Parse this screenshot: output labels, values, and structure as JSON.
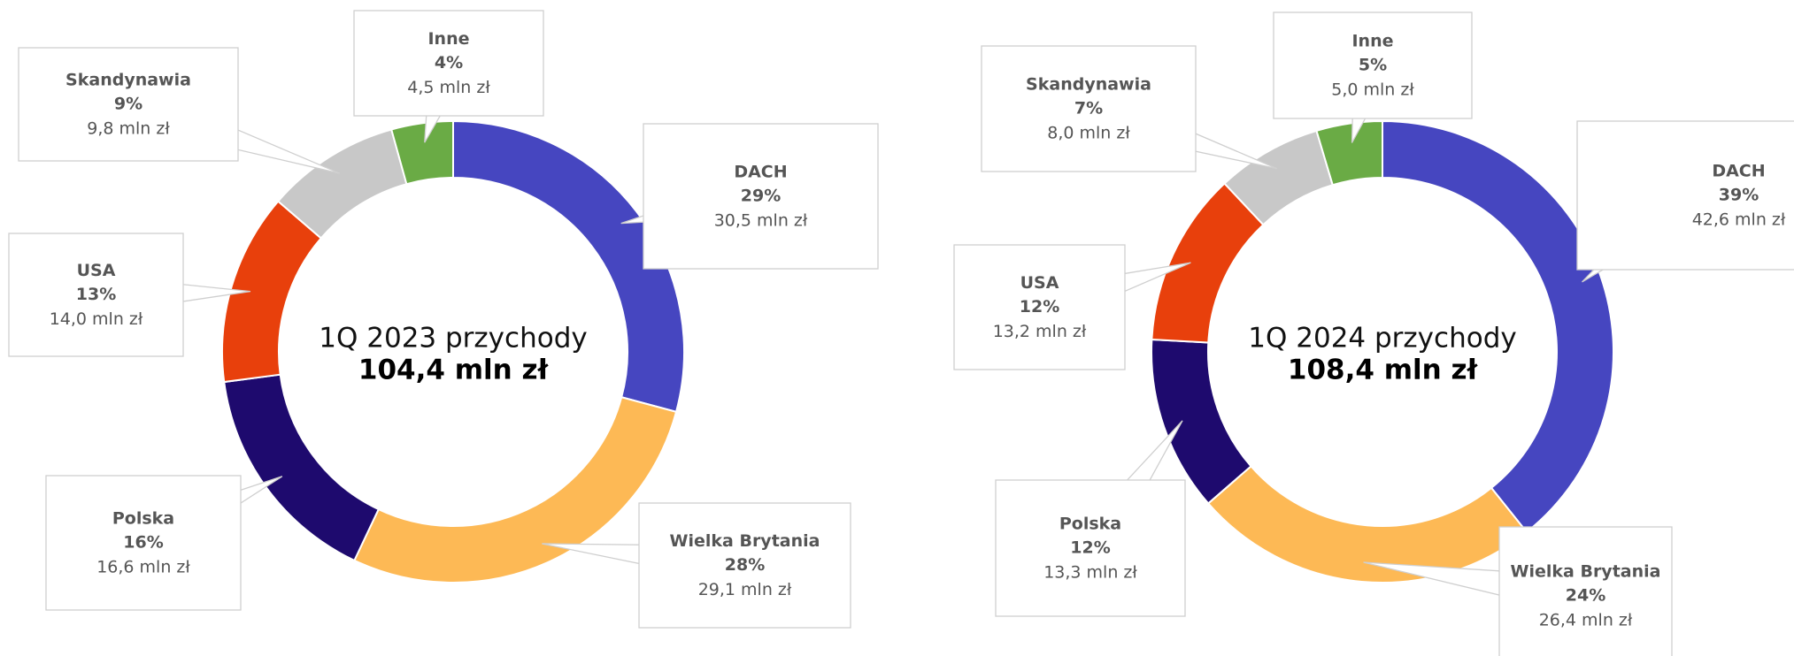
{
  "chart_data": [
    {
      "type": "donut",
      "title": "1Q 2023 przychody",
      "total_label": "104,4 mln zł",
      "categories": [
        "DACH",
        "Wielka Brytania",
        "Polska",
        "USA",
        "Skandynawia",
        "Inne"
      ],
      "values": [
        29,
        28,
        16,
        13,
        9,
        4
      ],
      "value_labels": [
        "29%",
        "28%",
        "16%",
        "13%",
        "9%",
        "4%"
      ],
      "amounts": [
        30.5,
        29.1,
        16.6,
        14.0,
        9.8,
        4.5
      ],
      "amount_labels": [
        "30,5 mln zł",
        "29,1 mln zł",
        "16,6 mln zł",
        "14,0 mln zł",
        "9,8 mln zł",
        "4,5 mln zł"
      ],
      "colors": [
        "#4646c0",
        "#fdb955",
        "#1e0a6e",
        "#e8400c",
        "#c8c8c8",
        "#6aab45"
      ]
    },
    {
      "type": "donut",
      "title": "1Q 2024 przychody",
      "total_label": "108,4 mln zł",
      "categories": [
        "DACH",
        "Wielka Brytania",
        "Polska",
        "USA",
        "Skandynawia",
        "Inne"
      ],
      "values": [
        39,
        24,
        12,
        12,
        7,
        5
      ],
      "value_labels": [
        "39%",
        "24%",
        "12%",
        "12%",
        "7%",
        "5%"
      ],
      "amounts": [
        42.6,
        26.4,
        13.3,
        13.2,
        8.0,
        5.0
      ],
      "amount_labels": [
        "42,6 mln zł",
        "26,4 mln zł",
        "13,3 mln zł",
        "13,2 mln zł",
        "8,0 mln zł",
        "5,0 mln zł"
      ],
      "colors": [
        "#4646c0",
        "#fdb955",
        "#1e0a6e",
        "#e8400c",
        "#c8c8c8",
        "#6aab45"
      ]
    }
  ]
}
